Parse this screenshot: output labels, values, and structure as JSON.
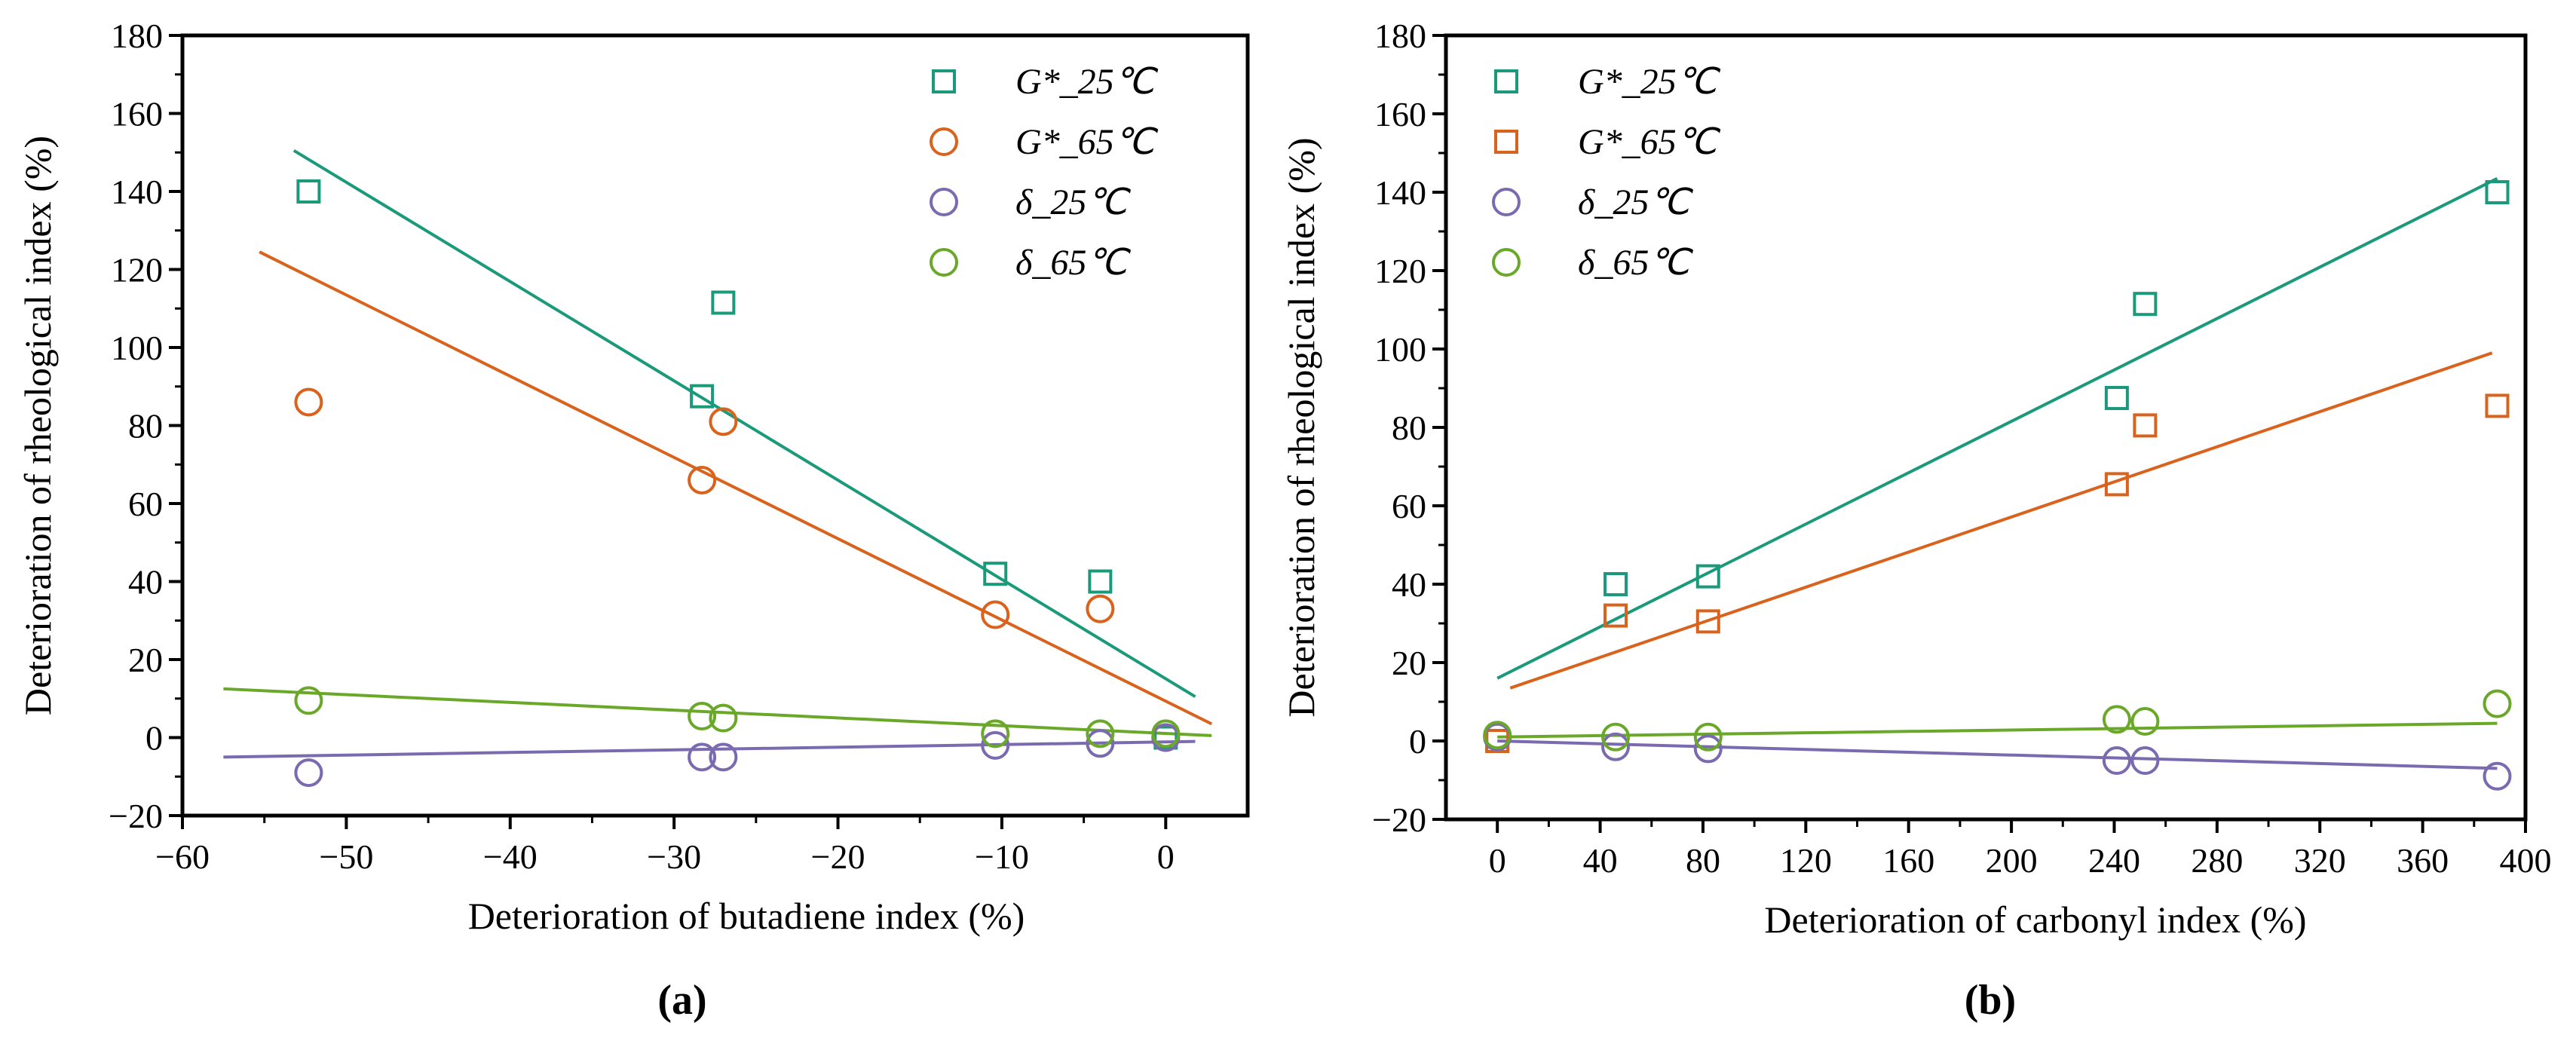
{
  "colors": {
    "green_teal": "#1a9a7a",
    "orange": "#d9621c",
    "purple": "#7a6ab0",
    "lime": "#6aa82a"
  },
  "chart_data": [
    {
      "type": "scatter",
      "panel_label": "(a)",
      "xlabel": "Deterioration of butadiene index (%)",
      "ylabel": "Deterioration of rheological index (%)",
      "xlim": [
        -60,
        5
      ],
      "ylim": [
        -20,
        180
      ],
      "xticks": [
        -60,
        -50,
        -40,
        -30,
        -20,
        -10,
        0
      ],
      "xtick_labels": [
        "−60",
        "−50",
        "−40",
        "−30",
        "−20",
        "−10",
        "0"
      ],
      "yticks": [
        -20,
        0,
        20,
        40,
        60,
        80,
        100,
        120,
        140,
        160,
        180
      ],
      "ytick_labels": [
        "−20",
        "0",
        "20",
        "40",
        "60",
        "80",
        "100",
        "120",
        "140",
        "160",
        "180"
      ],
      "legend_position": "top-right",
      "series": [
        {
          "name": "G*_25℃",
          "marker": "square",
          "color": "#1a9a7a",
          "points": [
            [
              -52.3,
              140
            ],
            [
              -28.3,
              87.5
            ],
            [
              -27,
              111.5
            ],
            [
              -10.4,
              42
            ],
            [
              -4,
              40
            ],
            [
              0,
              0
            ]
          ],
          "fit": [
            [
              -53.2,
              150.5
            ],
            [
              1.8,
              10.5
            ]
          ]
        },
        {
          "name": "G*_65℃",
          "marker": "circle",
          "color": "#d9621c",
          "points": [
            [
              -52.3,
              86
            ],
            [
              -28.3,
              66
            ],
            [
              -27,
              81
            ],
            [
              -10.4,
              31.5
            ],
            [
              -4,
              33
            ],
            [
              0,
              0
            ]
          ],
          "fit": [
            [
              -55.3,
              124.5
            ],
            [
              2.8,
              3.5
            ]
          ]
        },
        {
          "name": "δ_25℃",
          "marker": "circle",
          "color": "#7a6ab0",
          "points": [
            [
              -52.3,
              -9
            ],
            [
              -28.3,
              -5
            ],
            [
              -27,
              -5
            ],
            [
              -10.4,
              -2
            ],
            [
              -4,
              -1.5
            ],
            [
              0,
              0
            ]
          ],
          "fit": [
            [
              -57.5,
              -5
            ],
            [
              1.8,
              -1
            ]
          ]
        },
        {
          "name": "δ_65℃",
          "marker": "circle",
          "color": "#6aa82a",
          "points": [
            [
              -52.3,
              9.5
            ],
            [
              -28.3,
              5.5
            ],
            [
              -27,
              5
            ],
            [
              -10.4,
              1
            ],
            [
              -4,
              1
            ],
            [
              0,
              1
            ]
          ],
          "fit": [
            [
              -57.5,
              12.5
            ],
            [
              2.8,
              0.5
            ]
          ]
        }
      ]
    },
    {
      "type": "scatter",
      "panel_label": "(b)",
      "xlabel": "Deterioration of carbonyl index (%)",
      "ylabel": "Deterioration of rheological index (%)",
      "xlim": [
        -20,
        400
      ],
      "ylim": [
        -20,
        180
      ],
      "xticks": [
        0,
        40,
        80,
        120,
        160,
        200,
        240,
        280,
        320,
        360,
        400
      ],
      "xtick_labels": [
        "0",
        "40",
        "80",
        "120",
        "160",
        "200",
        "240",
        "280",
        "320",
        "360",
        "400"
      ],
      "yticks": [
        -20,
        0,
        20,
        40,
        60,
        80,
        100,
        120,
        140,
        160,
        180
      ],
      "ytick_labels": [
        "−20",
        "0",
        "20",
        "40",
        "60",
        "80",
        "100",
        "120",
        "140",
        "160",
        "180"
      ],
      "legend_position": "top-left",
      "series": [
        {
          "name": "G*_25℃",
          "marker": "square",
          "color": "#1a9a7a",
          "points": [
            [
              0,
              0
            ],
            [
              46,
              40
            ],
            [
              82,
              42
            ],
            [
              241,
              87.5
            ],
            [
              252,
              111.5
            ],
            [
              389,
              140
            ]
          ],
          "fit": [
            [
              0,
              16
            ],
            [
              389,
              143.5
            ]
          ]
        },
        {
          "name": "G*_65℃",
          "marker": "square",
          "color": "#d9621c",
          "points": [
            [
              0,
              0
            ],
            [
              46,
              32
            ],
            [
              82,
              30.5
            ],
            [
              241,
              65.5
            ],
            [
              252,
              80.5
            ],
            [
              389,
              85.5
            ]
          ],
          "fit": [
            [
              5,
              13.5
            ],
            [
              387,
              99
            ]
          ]
        },
        {
          "name": "δ_25℃",
          "marker": "circle",
          "color": "#7a6ab0",
          "points": [
            [
              0,
              1
            ],
            [
              46,
              -1.5
            ],
            [
              82,
              -2
            ],
            [
              241,
              -5
            ],
            [
              252,
              -5
            ],
            [
              389,
              -9
            ]
          ],
          "fit": [
            [
              0,
              0
            ],
            [
              389,
              -7
            ]
          ]
        },
        {
          "name": "δ_65℃",
          "marker": "circle",
          "color": "#6aa82a",
          "points": [
            [
              0,
              1.5
            ],
            [
              46,
              1
            ],
            [
              82,
              1
            ],
            [
              241,
              5.5
            ],
            [
              252,
              5
            ],
            [
              389,
              9.5
            ]
          ],
          "fit": [
            [
              0,
              1
            ],
            [
              389,
              4.5
            ]
          ]
        }
      ]
    }
  ]
}
